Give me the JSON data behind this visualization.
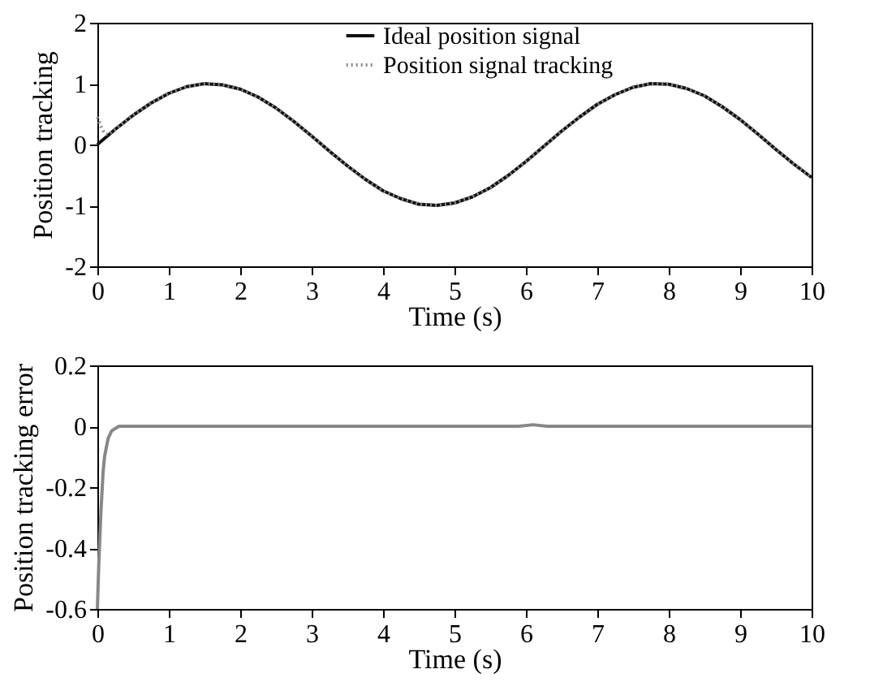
{
  "chart_data": [
    {
      "type": "line",
      "xlabel": "Time (s)",
      "ylabel": "Position tracking",
      "xlim": [
        0,
        10
      ],
      "xticks": [
        0,
        1,
        2,
        3,
        4,
        5,
        6,
        7,
        8,
        9,
        10
      ],
      "ylim": [
        -2,
        2
      ],
      "yticks": [
        -2,
        -1,
        0,
        1,
        2
      ],
      "grid": false,
      "legend": "top right",
      "series": [
        {
          "name": "Ideal position signal",
          "color": "#111111",
          "line_style": "solid",
          "x": [
            0,
            0.25,
            0.5,
            0.75,
            1,
            1.25,
            1.5,
            1.75,
            2,
            2.25,
            2.5,
            2.75,
            3,
            3.25,
            3.5,
            3.75,
            4,
            4.25,
            4.5,
            4.75,
            5,
            5.25,
            5.5,
            5.75,
            6,
            6.25,
            6.5,
            6.75,
            7,
            7.25,
            7.5,
            7.75,
            8,
            8.25,
            8.5,
            8.75,
            9,
            9.25,
            9.5,
            9.75,
            10
          ],
          "values": [
            0,
            0.25,
            0.48,
            0.68,
            0.84,
            0.95,
            1.0,
            0.98,
            0.91,
            0.78,
            0.6,
            0.38,
            0.14,
            -0.11,
            -0.35,
            -0.57,
            -0.76,
            -0.89,
            -0.98,
            -1.0,
            -0.96,
            -0.86,
            -0.71,
            -0.51,
            -0.28,
            -0.03,
            0.22,
            0.45,
            0.66,
            0.82,
            0.94,
            1.0,
            0.99,
            0.92,
            0.8,
            0.62,
            0.41,
            0.17,
            -0.08,
            -0.32,
            -0.54
          ]
        },
        {
          "name": "Position signal tracking",
          "color": "#888888",
          "line_style": "dotted",
          "x": [
            0,
            0.05,
            0.1,
            0.15,
            0.25,
            0.5,
            0.75,
            1,
            1.25,
            1.5,
            1.75,
            2,
            2.25,
            2.5,
            2.75,
            3,
            3.25,
            3.5,
            3.75,
            4,
            4.25,
            4.5,
            4.75,
            5,
            5.25,
            5.5,
            5.75,
            6,
            6.25,
            6.5,
            6.75,
            7,
            7.25,
            7.5,
            7.75,
            8,
            8.25,
            8.5,
            8.75,
            9,
            9.25,
            9.5,
            9.75,
            10
          ],
          "values": [
            0.45,
            0.3,
            0.18,
            0.16,
            0.25,
            0.48,
            0.68,
            0.84,
            0.95,
            1.0,
            0.98,
            0.91,
            0.78,
            0.6,
            0.38,
            0.14,
            -0.11,
            -0.35,
            -0.57,
            -0.76,
            -0.89,
            -0.98,
            -1.0,
            -0.96,
            -0.86,
            -0.71,
            -0.51,
            -0.28,
            -0.03,
            0.22,
            0.45,
            0.66,
            0.82,
            0.94,
            1.0,
            0.99,
            0.92,
            0.8,
            0.62,
            0.41,
            0.17,
            -0.08,
            -0.32,
            -0.54
          ]
        }
      ]
    },
    {
      "type": "line",
      "xlabel": "Time (s)",
      "ylabel": "Position tracking error",
      "xlim": [
        0,
        10
      ],
      "xticks": [
        0,
        1,
        2,
        3,
        4,
        5,
        6,
        7,
        8,
        9,
        10
      ],
      "ylim": [
        -0.6,
        0.2
      ],
      "yticks": [
        -0.6,
        -0.4,
        -0.2,
        0,
        0.2
      ],
      "grid": false,
      "legend": false,
      "series": [
        {
          "color": "#888888",
          "line_style": "solid",
          "x": [
            0,
            0.02,
            0.05,
            0.08,
            0.1,
            0.15,
            0.2,
            0.3,
            0.5,
            1,
            2,
            3,
            4,
            5,
            5.9,
            6.1,
            6.3,
            7,
            8,
            9,
            10
          ],
          "values": [
            -0.6,
            -0.45,
            -0.28,
            -0.15,
            -0.1,
            -0.04,
            -0.015,
            0,
            0,
            0,
            0,
            0,
            0,
            0,
            0,
            0.005,
            0,
            0,
            0,
            0,
            0
          ]
        }
      ]
    }
  ]
}
